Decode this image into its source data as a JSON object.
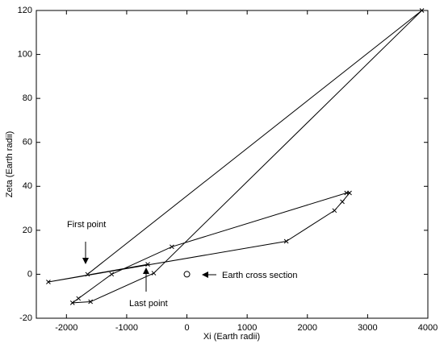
{
  "chart_data": {
    "type": "line",
    "xlabel": "Xi (Earth radii)",
    "ylabel": "Zeta (Earth radii)",
    "xlim": [
      -2500,
      4000
    ],
    "ylim": [
      -20,
      120
    ],
    "xticks": [
      -2000,
      -1000,
      0,
      1000,
      2000,
      3000,
      4000
    ],
    "yticks": [
      -20,
      0,
      20,
      40,
      60,
      80,
      100,
      120
    ],
    "grid": false,
    "series": [
      {
        "color": "#000000",
        "marker": "x",
        "line": true,
        "x": [
          -1650,
          3900,
          -550,
          -1600,
          -1900,
          -1800,
          -1250,
          -250,
          2650,
          2700,
          2580,
          2450,
          1650,
          -2300,
          -650
        ],
        "values": [
          0,
          120,
          0.5,
          -12.5,
          -13,
          -11,
          0,
          12.5,
          37,
          37,
          33,
          29,
          15,
          -3.5,
          4.5
        ]
      },
      {
        "color": "#000000",
        "marker": "o",
        "line": false,
        "x": [
          0
        ],
        "values": [
          0
        ]
      }
    ],
    "annotations": [
      "First point",
      "Last point",
      "Earth cross section"
    ]
  }
}
